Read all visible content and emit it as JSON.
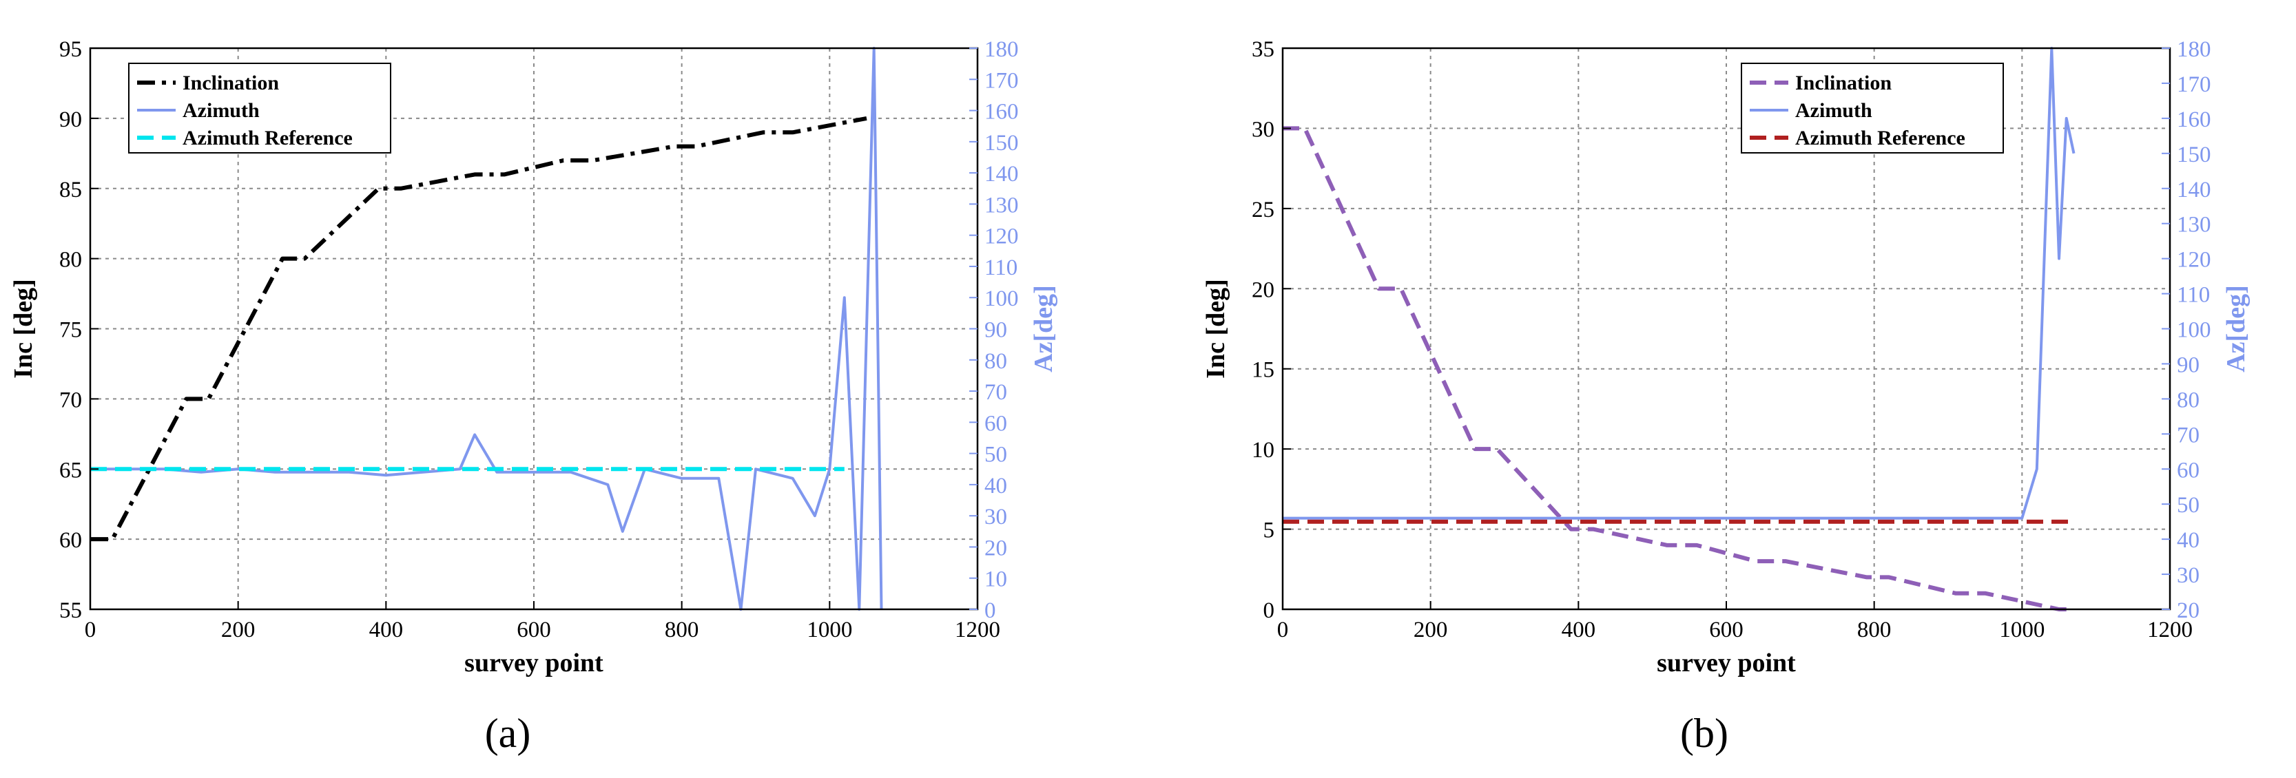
{
  "chart_data": [
    {
      "type": "line",
      "panel_label": "(a)",
      "xlabel": "survey point",
      "ylabel": "Inc [deg]",
      "ylabel_right": "Az[deg]",
      "xlim": [
        0,
        1200
      ],
      "ylim": [
        55,
        95
      ],
      "ylim_right": [
        0,
        180
      ],
      "xticks": [
        "0",
        "200",
        "400",
        "600",
        "800",
        "1000",
        "1200"
      ],
      "yticks": [
        "55",
        "60",
        "65",
        "70",
        "75",
        "80",
        "85",
        "90",
        "95"
      ],
      "yticks_right": [
        "0",
        "10",
        "20",
        "30",
        "40",
        "50",
        "60",
        "70",
        "80",
        "90",
        "100",
        "110",
        "120",
        "130",
        "140",
        "150",
        "160",
        "170",
        "180"
      ],
      "grid": true,
      "legend_position": "top-left",
      "series": [
        {
          "name": "Inclination",
          "axis": "left",
          "style": "dash-dot",
          "color": "#000000",
          "x": [
            0,
            30,
            130,
            160,
            260,
            290,
            390,
            420,
            520,
            560,
            640,
            680,
            790,
            820,
            910,
            950,
            1050
          ],
          "y": [
            60,
            60,
            70,
            70,
            80,
            80,
            85,
            85,
            86,
            86,
            87,
            87,
            88,
            88,
            89,
            89,
            90
          ]
        },
        {
          "name": "Azimuth",
          "axis": "right",
          "style": "solid",
          "color": "#7f97ee",
          "x": [
            0,
            50,
            100,
            150,
            200,
            250,
            300,
            350,
            400,
            450,
            500,
            520,
            550,
            600,
            650,
            700,
            720,
            750,
            800,
            850,
            880,
            900,
            950,
            980,
            1000,
            1020,
            1040,
            1060,
            1070
          ],
          "y": [
            45,
            45,
            45,
            44,
            45,
            44,
            44,
            44,
            43,
            44,
            45,
            56,
            44,
            44,
            44,
            40,
            25,
            45,
            42,
            42,
            0,
            45,
            42,
            30,
            45,
            100,
            0,
            180,
            0
          ]
        },
        {
          "name": "Azimuth Reference",
          "axis": "right",
          "style": "dashed",
          "color": "#00e5ee",
          "x": [
            0,
            1020
          ],
          "y": [
            45,
            45
          ]
        }
      ]
    },
    {
      "type": "line",
      "panel_label": "(b)",
      "xlabel": "survey point",
      "ylabel": "Inc [deg]",
      "ylabel_right": "Az[deg]",
      "xlim": [
        0,
        1200
      ],
      "ylim": [
        0,
        35
      ],
      "ylim_right": [
        20,
        180
      ],
      "xticks": [
        "0",
        "200",
        "400",
        "600",
        "800",
        "1000",
        "1200"
      ],
      "yticks": [
        "0",
        "5",
        "10",
        "15",
        "20",
        "25",
        "30",
        "35"
      ],
      "yticks_right": [
        "20",
        "30",
        "40",
        "50",
        "60",
        "70",
        "80",
        "90",
        "100",
        "110",
        "120",
        "130",
        "140",
        "150",
        "160",
        "170",
        "180"
      ],
      "grid": true,
      "legend_position": "top-right",
      "series": [
        {
          "name": "Inclination",
          "axis": "left",
          "style": "dashed",
          "color": "#8e5fb7",
          "x": [
            0,
            30,
            130,
            160,
            260,
            290,
            390,
            420,
            520,
            560,
            640,
            680,
            790,
            820,
            910,
            950,
            1050,
            1070
          ],
          "y": [
            30,
            30,
            20,
            20,
            10,
            10,
            5,
            5,
            4,
            4,
            3,
            3,
            2,
            2,
            1,
            1,
            0,
            0
          ]
        },
        {
          "name": "Azimuth",
          "axis": "right",
          "style": "solid",
          "color": "#7f97ee",
          "x": [
            0,
            100,
            200,
            300,
            400,
            500,
            600,
            700,
            800,
            900,
            960,
            1000,
            1020,
            1040,
            1050,
            1060,
            1070
          ],
          "y": [
            46,
            46,
            46,
            46,
            46,
            46,
            46,
            46,
            46,
            46,
            46,
            46,
            60,
            180,
            120,
            160,
            150
          ]
        },
        {
          "name": "Azimuth Reference",
          "axis": "right",
          "style": "dashed",
          "color": "#b02020",
          "x": [
            0,
            1070
          ],
          "y": [
            45,
            45
          ]
        }
      ]
    }
  ]
}
